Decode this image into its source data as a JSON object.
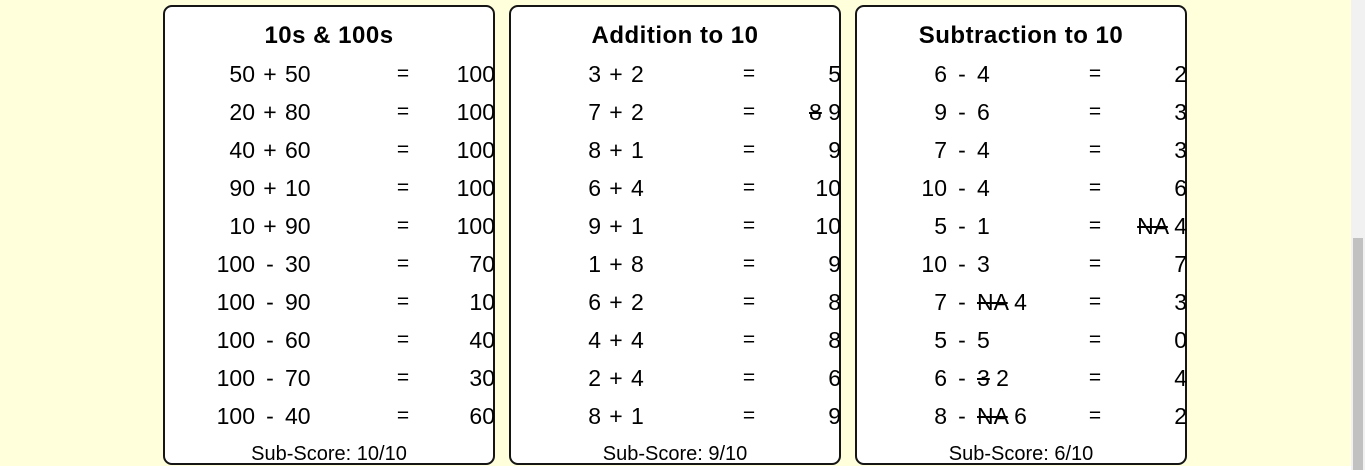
{
  "page": {
    "background_color": "#FFFFDC",
    "panel_background": "#FFFFFF",
    "panel_border_color": "#151515",
    "text_color": "#000000"
  },
  "symbols": {
    "equals": "="
  },
  "panels": [
    {
      "title": "10s & 100s",
      "rows": [
        {
          "a": "50",
          "op": "+",
          "b": "50",
          "ans": "100"
        },
        {
          "a": "20",
          "op": "+",
          "b": "80",
          "ans": "100"
        },
        {
          "a": "40",
          "op": "+",
          "b": "60",
          "ans": "100"
        },
        {
          "a": "90",
          "op": "+",
          "b": "10",
          "ans": "100"
        },
        {
          "a": "10",
          "op": "+",
          "b": "90",
          "ans": "100"
        },
        {
          "a": "100",
          "op": "-",
          "b": "30",
          "ans": "70"
        },
        {
          "a": "100",
          "op": "-",
          "b": "90",
          "ans": "10"
        },
        {
          "a": "100",
          "op": "-",
          "b": "60",
          "ans": "40"
        },
        {
          "a": "100",
          "op": "-",
          "b": "70",
          "ans": "30"
        },
        {
          "a": "100",
          "op": "-",
          "b": "40",
          "ans": "60"
        }
      ],
      "subscore": "Sub-Score: 10/10"
    },
    {
      "title": "Addition to 10",
      "rows": [
        {
          "a": "3",
          "op": "+",
          "b": "2",
          "ans": "5"
        },
        {
          "a": "7",
          "op": "+",
          "b": "2",
          "ans_strike": "8",
          "ans": "9"
        },
        {
          "a": "8",
          "op": "+",
          "b": "1",
          "ans": "9"
        },
        {
          "a": "6",
          "op": "+",
          "b": "4",
          "ans": "10"
        },
        {
          "a": "9",
          "op": "+",
          "b": "1",
          "ans": "10"
        },
        {
          "a": "1",
          "op": "+",
          "b": "8",
          "ans": "9"
        },
        {
          "a": "6",
          "op": "+",
          "b": "2",
          "ans": "8"
        },
        {
          "a": "4",
          "op": "+",
          "b": "4",
          "ans": "8"
        },
        {
          "a": "2",
          "op": "+",
          "b": "4",
          "ans": "6"
        },
        {
          "a": "8",
          "op": "+",
          "b": "1",
          "ans": "9"
        }
      ],
      "subscore": "Sub-Score: 9/10"
    },
    {
      "title": "Subtraction to 10",
      "rows": [
        {
          "a": "6",
          "op": "-",
          "b": "4",
          "ans": "2"
        },
        {
          "a": "9",
          "op": "-",
          "b": "6",
          "ans": "3"
        },
        {
          "a": "7",
          "op": "-",
          "b": "4",
          "ans": "3"
        },
        {
          "a": "10",
          "op": "-",
          "b": "4",
          "ans": "6"
        },
        {
          "a": "5",
          "op": "-",
          "b": "1",
          "ans_strike": "NA",
          "ans": "4"
        },
        {
          "a": "10",
          "op": "-",
          "b": "3",
          "ans": "7"
        },
        {
          "a": "7",
          "op": "-",
          "b_strike": "NA",
          "b": "4",
          "ans": "3"
        },
        {
          "a": "5",
          "op": "-",
          "b": "5",
          "ans": "0"
        },
        {
          "a": "6",
          "op": "-",
          "b_strike": "3",
          "b": "2",
          "ans": "4"
        },
        {
          "a": "8",
          "op": "-",
          "b_strike": "NA",
          "b": "6",
          "ans": "2"
        }
      ],
      "subscore": "Sub-Score: 6/10"
    }
  ],
  "scrollbar": {
    "track_color": "#F1F1F1",
    "thumb_color": "#C1C1C1"
  }
}
